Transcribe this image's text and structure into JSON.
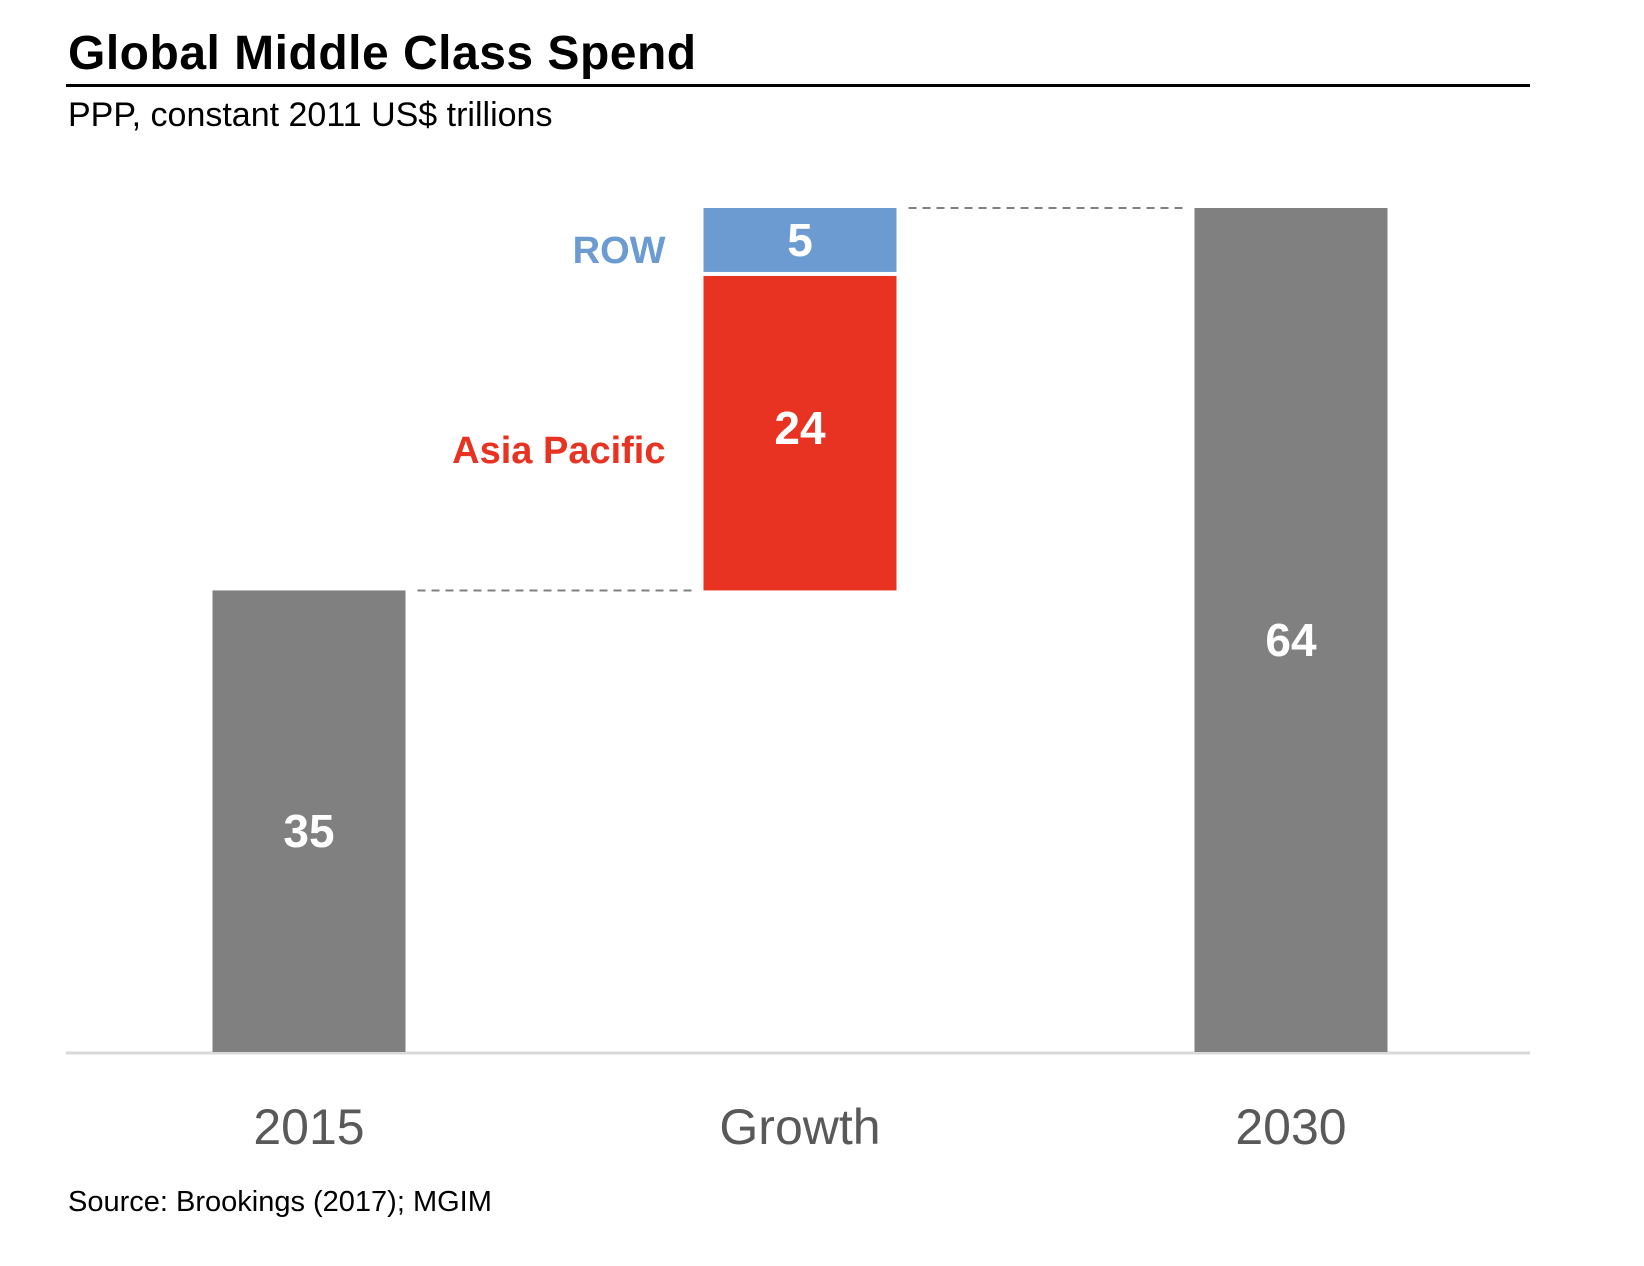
{
  "title": "Global Middle Class Spend",
  "subtitle": "PPP, constant 2011 US$ trillions",
  "source": "Source: Brookings (2017); MGIM",
  "chart_data": {
    "type": "bar",
    "subtype": "waterfall",
    "categories": [
      "2015",
      "Growth",
      "2030"
    ],
    "bars": [
      {
        "category": "2015",
        "value": 35,
        "base": 0,
        "label": "35",
        "color": "#808080"
      },
      {
        "category": "Growth",
        "segments": [
          {
            "name": "Asia Pacific",
            "value": 24,
            "base": 35,
            "label": "24",
            "color": "#E83323"
          },
          {
            "name": "ROW",
            "value": 5,
            "base": 59,
            "label": "5",
            "color": "#6B9BD1"
          }
        ]
      },
      {
        "category": "2030",
        "value": 64,
        "base": 0,
        "label": "64",
        "color": "#808080"
      }
    ],
    "segment_labels": [
      {
        "name": "ROW",
        "color": "#6B9BD1"
      },
      {
        "name": "Asia Pacific",
        "color": "#E83323"
      }
    ],
    "connectors": "dashed",
    "ylim": [
      0,
      64
    ],
    "grid": false
  }
}
